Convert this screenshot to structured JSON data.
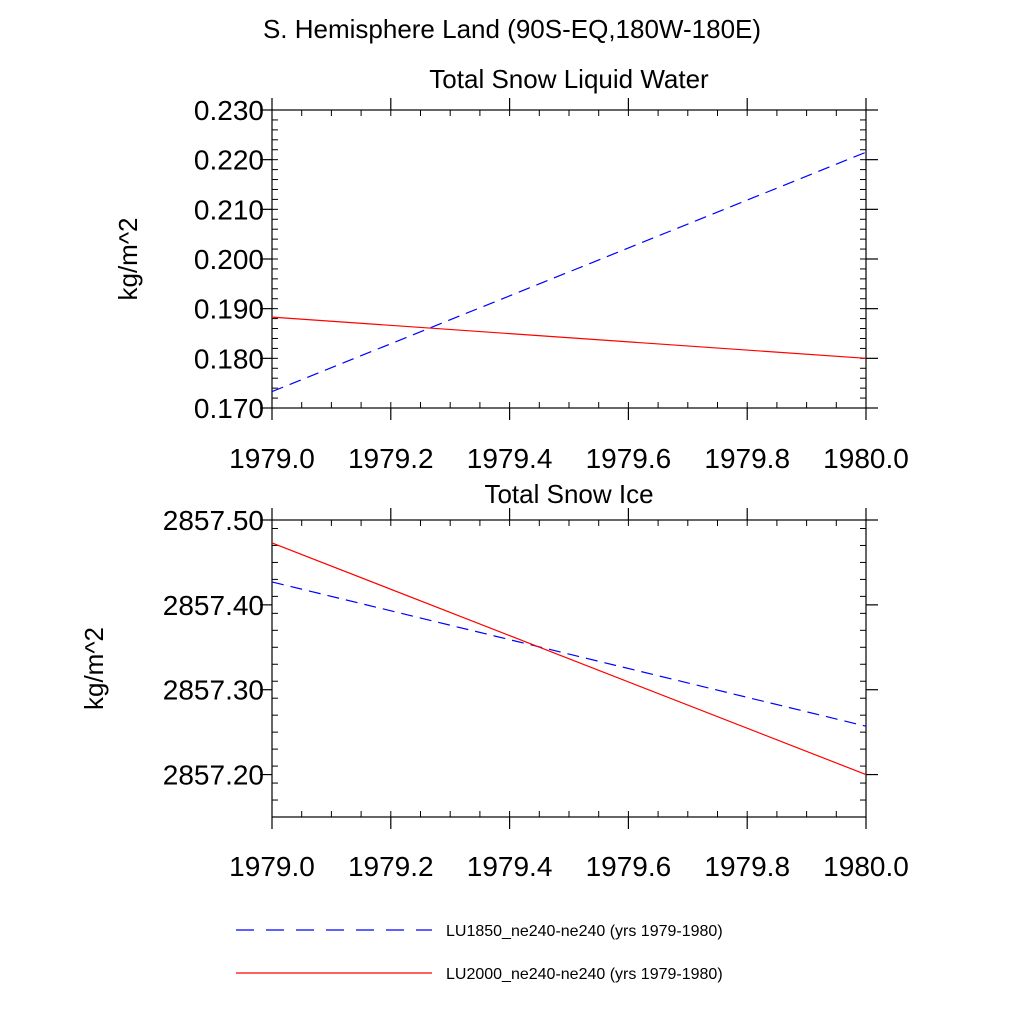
{
  "figure": {
    "title": "S. Hemisphere Land (90S-EQ,180W-180E)"
  },
  "legend": {
    "placement": "bottom",
    "items": [
      {
        "label": "LU1850_ne240-ne240 (yrs 1979-1980)",
        "color": "#0000ff",
        "style": "dashed"
      },
      {
        "label": "LU2000_ne240-ne240 (yrs 1979-1980)",
        "color": "#ff0000",
        "style": "solid"
      }
    ]
  },
  "chart_data": [
    {
      "type": "line",
      "title": "Total Snow Liquid Water",
      "xlabel": "",
      "ylabel": "kg/m^2",
      "xlim": [
        1979.0,
        1980.0
      ],
      "ylim": [
        0.17,
        0.23
      ],
      "x_ticks": [
        "1979.0",
        "1979.2",
        "1979.4",
        "1979.6",
        "1979.8",
        "1980.0"
      ],
      "y_ticks": [
        "0.170",
        "0.180",
        "0.190",
        "0.200",
        "0.210",
        "0.220",
        "0.230"
      ],
      "grid": false,
      "series": [
        {
          "name": "LU1850_ne240-ne240 (yrs 1979-1980)",
          "color": "#0000ff",
          "style": "dashed",
          "x": [
            1979.0,
            1980.0
          ],
          "y": [
            0.1733,
            0.2215
          ]
        },
        {
          "name": "LU2000_ne240-ne240 (yrs 1979-1980)",
          "color": "#ff0000",
          "style": "solid",
          "x": [
            1979.0,
            1980.0
          ],
          "y": [
            0.1883,
            0.18
          ]
        }
      ]
    },
    {
      "type": "line",
      "title": "Total Snow Ice",
      "xlabel": "",
      "ylabel": "kg/m^2",
      "xlim": [
        1979.0,
        1980.0
      ],
      "ylim": [
        2857.15,
        2857.5
      ],
      "x_ticks": [
        "1979.0",
        "1979.2",
        "1979.4",
        "1979.6",
        "1979.8",
        "1980.0"
      ],
      "y_ticks": [
        "2857.20",
        "2857.30",
        "2857.40",
        "2857.50"
      ],
      "grid": false,
      "series": [
        {
          "name": "LU1850_ne240-ne240 (yrs 1979-1980)",
          "color": "#0000ff",
          "style": "dashed",
          "x": [
            1979.0,
            1980.0
          ],
          "y": [
            2857.427,
            2857.257
          ]
        },
        {
          "name": "LU2000_ne240-ne240 (yrs 1979-1980)",
          "color": "#ff0000",
          "style": "solid",
          "x": [
            1979.0,
            1980.0
          ],
          "y": [
            2857.473,
            2857.2
          ]
        }
      ]
    }
  ]
}
